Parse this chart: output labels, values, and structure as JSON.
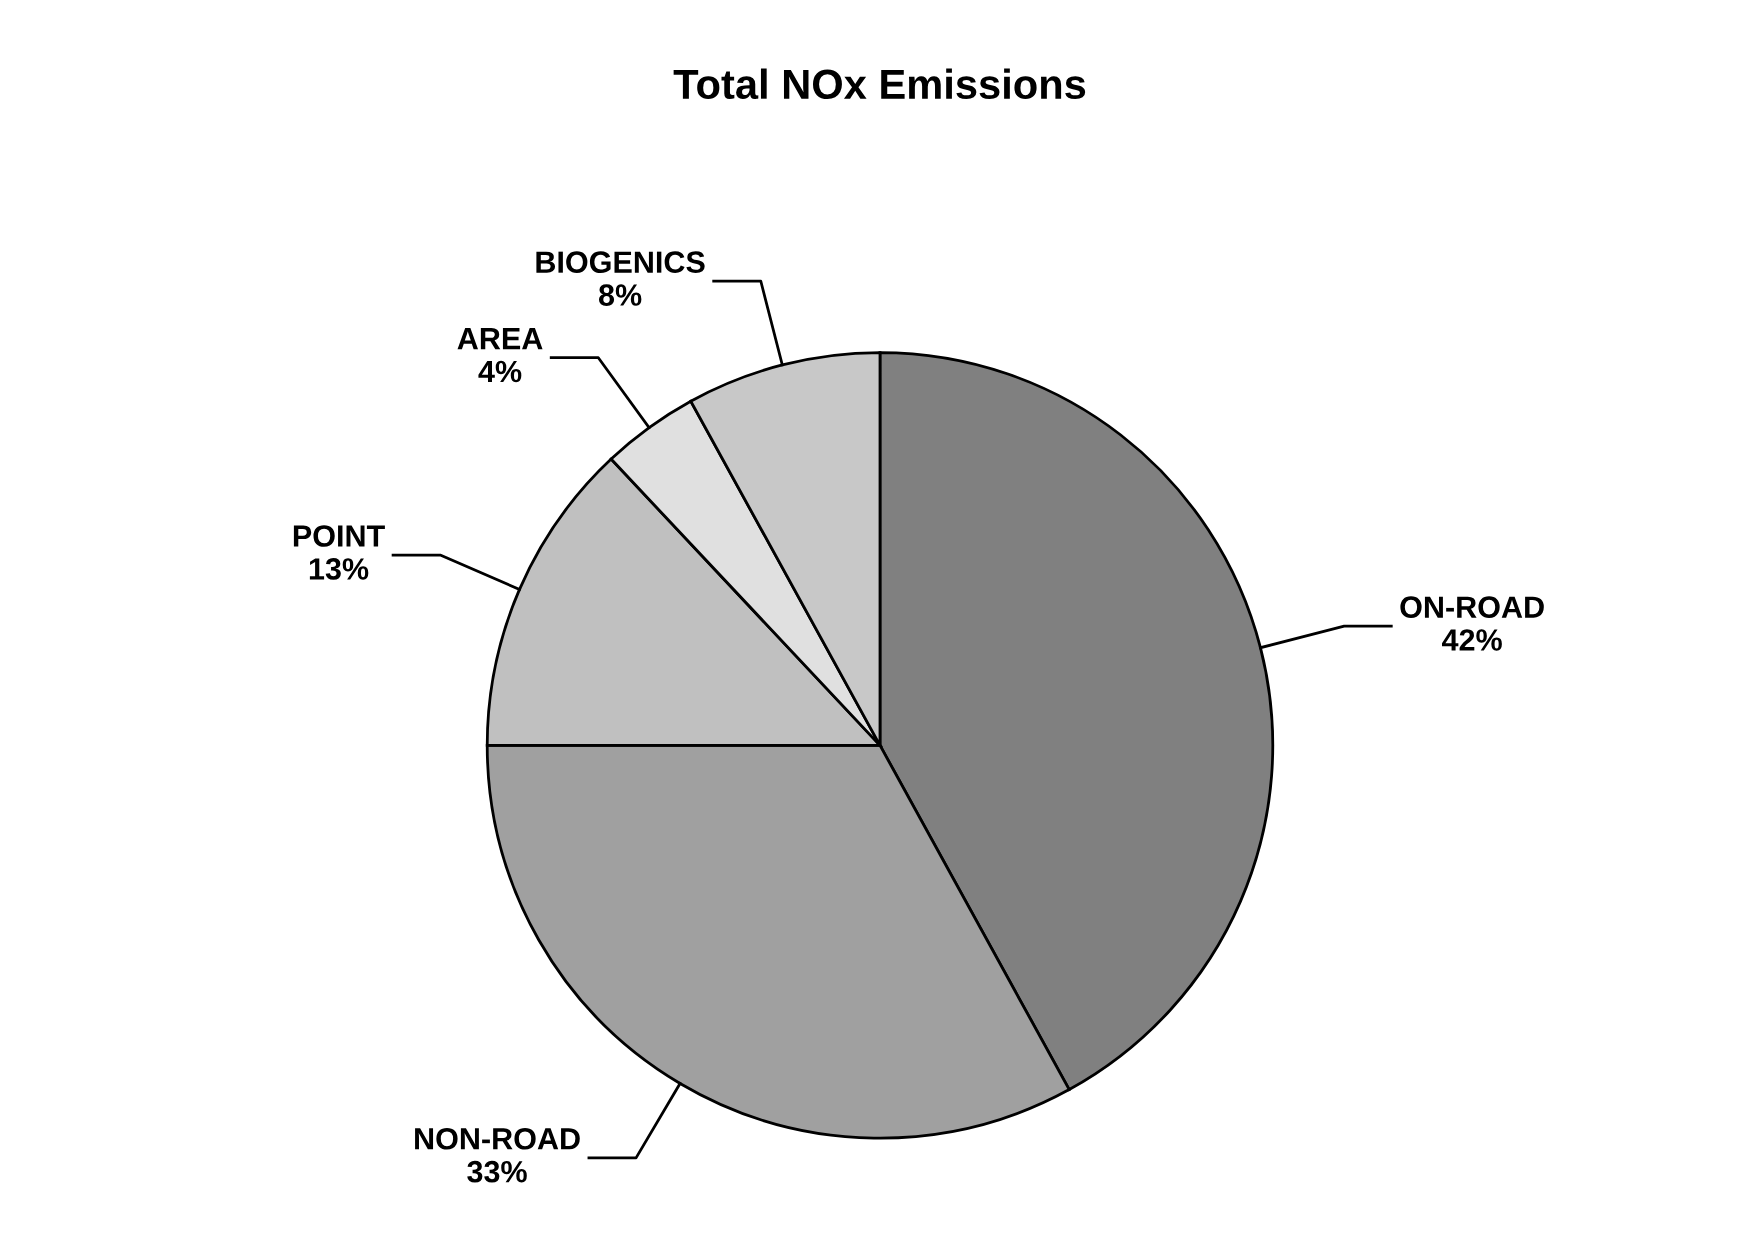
{
  "chart_data": {
    "type": "pie",
    "title": "Total NOx Emissions",
    "categories": [
      "ON-ROAD",
      "NON-ROAD",
      "POINT",
      "AREA",
      "BIOGENICS"
    ],
    "values": [
      42,
      33,
      13,
      4,
      8
    ],
    "value_labels": [
      "42%",
      "33%",
      "13%",
      "4%",
      "8%"
    ],
    "colors": [
      "#808080",
      "#a0a0a0",
      "#c0c0c0",
      "#e0e0e0",
      "#c8c8c8"
    ],
    "legend": false
  }
}
